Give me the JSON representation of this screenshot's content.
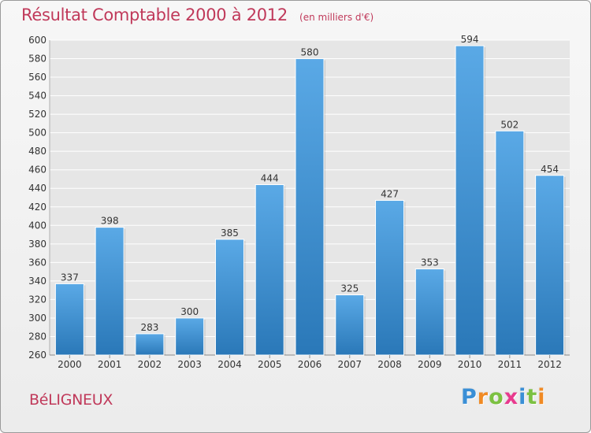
{
  "colors": {
    "accent": "#c0395a",
    "bar_top": "#5aa9e6",
    "bar_bottom": "#2a78b8",
    "grid": "#ffffff",
    "axis_text": "#333333"
  },
  "header": {
    "title": "Résultat Comptable 2000 à 2012",
    "subtitle": "(en milliers d'€)"
  },
  "footer": {
    "commune": "BéLIGNEUX",
    "brand": [
      "P",
      "r",
      "o",
      "x",
      "i",
      "t",
      "i"
    ],
    "brand_colors": [
      "#3a8fd6",
      "#f08a24",
      "#7cc142",
      "#e83a8e",
      "#3a8fd6",
      "#7cc142",
      "#f08a24"
    ]
  },
  "chart_data": {
    "type": "bar",
    "title": "Résultat Comptable 2000 à 2012",
    "subtitle": "(en milliers d'€)",
    "xlabel": "",
    "ylabel": "",
    "categories": [
      "2000",
      "2001",
      "2002",
      "2003",
      "2004",
      "2005",
      "2006",
      "2007",
      "2008",
      "2009",
      "2010",
      "2011",
      "2012"
    ],
    "values": [
      337,
      398,
      283,
      300,
      385,
      444,
      580,
      325,
      427,
      353,
      594,
      502,
      454
    ],
    "ylim": [
      260,
      600
    ],
    "ytick_step": 20,
    "grid": true,
    "legend": "none"
  }
}
